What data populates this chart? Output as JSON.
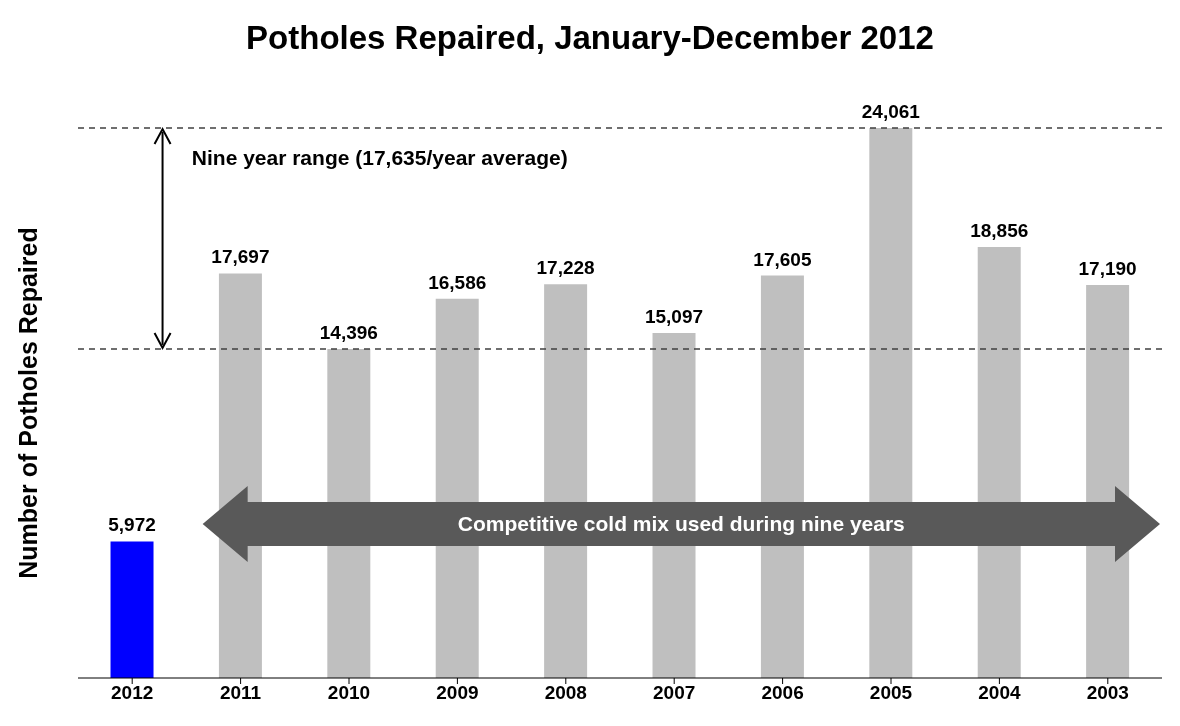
{
  "chart_data": {
    "type": "bar",
    "title": "Potholes Repaired, January-December 2012",
    "ylabel": "Number of Potholes Repaired",
    "categories": [
      "2012",
      "2011",
      "2010",
      "2009",
      "2008",
      "2007",
      "2006",
      "2005",
      "2004",
      "2003"
    ],
    "values": [
      5972,
      17697,
      14396,
      16586,
      17228,
      15097,
      17605,
      24061,
      18856,
      17190
    ],
    "colors": [
      "#0000ff",
      "#bfbfbf",
      "#bfbfbf",
      "#bfbfbf",
      "#bfbfbf",
      "#bfbfbf",
      "#bfbfbf",
      "#bfbfbf",
      "#bfbfbf",
      "#bfbfbf"
    ],
    "value_labels": [
      "5,972",
      "17,697",
      "14,396",
      "16,586",
      "17,228",
      "15,097",
      "17,605",
      "24,061",
      "18,856",
      "17,190"
    ],
    "grid": false,
    "legend": false,
    "ref_lines": [
      {
        "axis": "y",
        "value": 24061,
        "color": "#404040",
        "line_style": "dashed"
      },
      {
        "axis": "y",
        "value": 14396,
        "color": "#404040",
        "line_style": "dashed"
      }
    ],
    "annotations": [
      "Nine year range (17,635/year average)",
      "Competitive cold mix used during nine years"
    ]
  }
}
